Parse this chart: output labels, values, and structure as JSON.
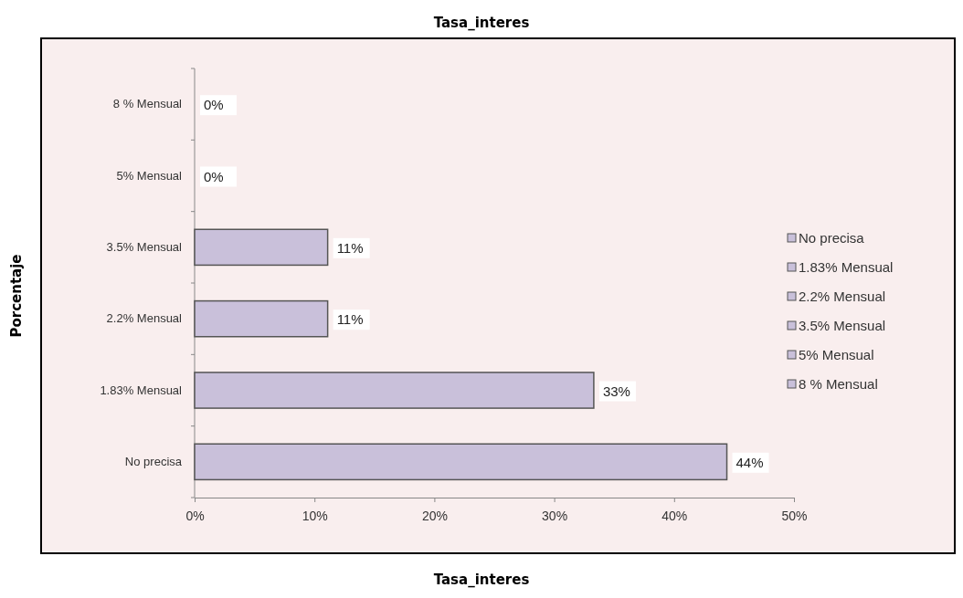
{
  "chart_data": {
    "type": "bar",
    "orientation": "horizontal",
    "stacked": true,
    "title": "Tasa_interes",
    "xlabel": "Tasa_interes",
    "annotations": [
      "Porcentaje"
    ],
    "categories": [
      "8 % Mensual",
      "5% Mensual",
      "3.5% Mensual",
      "2.2% Mensual",
      "1.83% Mensual",
      "No precisa"
    ],
    "series": [
      {
        "name": "No precisa",
        "color": "#c9c0da",
        "values": [
          null,
          null,
          null,
          null,
          null,
          44.4
        ],
        "value_labels": [
          null,
          null,
          null,
          null,
          null,
          "44%"
        ]
      },
      {
        "name": "1.83% Mensual",
        "color": "#c9c0da",
        "values": [
          null,
          null,
          null,
          null,
          33.3,
          null
        ],
        "value_labels": [
          null,
          null,
          null,
          null,
          "33%",
          null
        ]
      },
      {
        "name": "2.2% Mensual",
        "color": "#c9c0da",
        "values": [
          null,
          null,
          null,
          11.1,
          null,
          null
        ],
        "value_labels": [
          null,
          null,
          null,
          "11%",
          null,
          null
        ]
      },
      {
        "name": "3.5% Mensual",
        "color": "#c9c0da",
        "values": [
          null,
          null,
          11.1,
          null,
          null,
          null
        ],
        "value_labels": [
          null,
          null,
          "11%",
          null,
          null,
          null
        ]
      },
      {
        "name": "5% Mensual",
        "color": "#c9c0da",
        "values": [
          null,
          0,
          null,
          null,
          null,
          null
        ],
        "value_labels": [
          null,
          "0%",
          null,
          null,
          null,
          null
        ]
      },
      {
        "name": "8 % Mensual",
        "color": "#c9c0da",
        "values": [
          0,
          null,
          null,
          null,
          null,
          null
        ],
        "value_labels": [
          "0%",
          null,
          null,
          null,
          null,
          null
        ]
      }
    ],
    "xlim": [
      0,
      50
    ],
    "xticks": [
      {
        "value": 0,
        "label": "0%"
      },
      {
        "value": 10,
        "label": "10%"
      },
      {
        "value": 20,
        "label": "20%"
      },
      {
        "value": 30,
        "label": "30%"
      },
      {
        "value": 40,
        "label": "40%"
      },
      {
        "value": 50,
        "label": "50%"
      }
    ],
    "grid": false,
    "legend": "right"
  }
}
